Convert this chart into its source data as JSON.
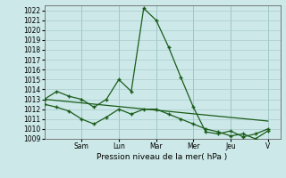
{
  "ylabel": "Pression niveau de la mer( hPa )",
  "ylim": [
    1009,
    1022.5
  ],
  "yticks": [
    1009,
    1010,
    1011,
    1012,
    1013,
    1014,
    1015,
    1016,
    1017,
    1018,
    1019,
    1020,
    1021,
    1022
  ],
  "day_labels": [
    "Sam",
    "Lun",
    "Mar",
    "Mer",
    "Jeu",
    "V"
  ],
  "day_positions": [
    3,
    6,
    9,
    12,
    15,
    18
  ],
  "xlim": [
    0,
    19
  ],
  "background_color": "#cce8e8",
  "grid_color": "#aacccc",
  "line_color": "#1a5c1a",
  "series1_x": [
    0,
    1,
    2,
    3,
    4,
    5,
    6,
    7,
    8,
    9,
    10,
    11,
    12,
    13,
    14,
    15,
    16,
    17,
    18
  ],
  "series1_y": [
    1013.0,
    1013.8,
    1013.3,
    1013.0,
    1012.2,
    1013.0,
    1015.0,
    1013.8,
    1022.2,
    1021.0,
    1018.3,
    1015.2,
    1012.2,
    1009.7,
    1009.5,
    1009.8,
    1009.2,
    1009.5,
    1010.0
  ],
  "series2_x": [
    0,
    1,
    2,
    3,
    4,
    5,
    6,
    7,
    8,
    9,
    10,
    11,
    12,
    13,
    14,
    15,
    16,
    17,
    18
  ],
  "series2_y": [
    1012.5,
    1012.2,
    1011.8,
    1011.0,
    1010.5,
    1011.2,
    1012.0,
    1011.5,
    1012.0,
    1012.0,
    1011.5,
    1011.0,
    1010.5,
    1010.0,
    1009.7,
    1009.3,
    1009.5,
    1009.0,
    1009.8
  ],
  "series3_x": [
    0,
    18
  ],
  "series3_y": [
    1013.0,
    1010.8
  ],
  "tick_fontsize": 5.5,
  "xlabel_fontsize": 6.5,
  "marker": "+",
  "markersize": 3.5,
  "linewidth": 0.9
}
